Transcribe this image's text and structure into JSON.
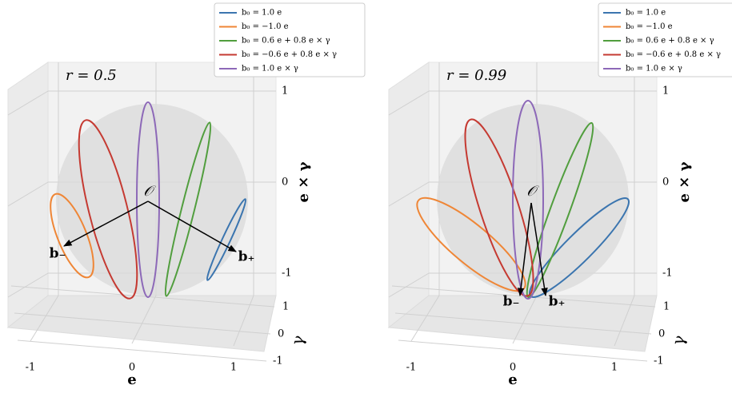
{
  "chart_data": [
    {
      "type": "line",
      "annotation": "r = 0.5",
      "origin_label": "𝒪",
      "vector_labels": [
        "b₋",
        "b₊"
      ],
      "xlabel": "e",
      "ylabel": "γ",
      "zlabel": "e × γ",
      "xlim": [
        -1.2,
        1.2
      ],
      "ylim": [
        -1.2,
        1.2
      ],
      "zlim": [
        -1.2,
        1.2
      ],
      "xticks": [
        -1,
        0,
        1
      ],
      "yticks": [
        -1,
        0,
        1
      ],
      "zticks": [
        -1,
        0,
        1
      ],
      "series": [
        {
          "name": "b₀ = 1.0 e",
          "color": "#3b75af"
        },
        {
          "name": "b₀ = −1.0 e",
          "color": "#ef8636"
        },
        {
          "name": "b₀ = 0.6 e + 0.8 e × γ",
          "color": "#519e3e"
        },
        {
          "name": "b₀ = −0.6 e + 0.8 e × γ",
          "color": "#c53a32"
        },
        {
          "name": "b₀ = 1.0 e × γ",
          "color": "#8d69b8"
        }
      ]
    },
    {
      "type": "line",
      "annotation": "r = 0.99",
      "origin_label": "𝒪",
      "vector_labels": [
        "b₋",
        "b₊"
      ],
      "xlabel": "e",
      "ylabel": "γ",
      "zlabel": "e × γ",
      "xlim": [
        -1.2,
        1.2
      ],
      "ylim": [
        -1.2,
        1.2
      ],
      "zlim": [
        -1.2,
        1.2
      ],
      "xticks": [
        -1,
        0,
        1
      ],
      "yticks": [
        -1,
        0,
        1
      ],
      "zticks": [
        -1,
        0,
        1
      ],
      "series": [
        {
          "name": "b₀ = 1.0 e",
          "color": "#3b75af"
        },
        {
          "name": "b₀ = −1.0 e",
          "color": "#ef8636"
        },
        {
          "name": "b₀ = 0.6 e + 0.8 e × γ",
          "color": "#519e3e"
        },
        {
          "name": "b₀ = −0.6 e + 0.8 e × γ",
          "color": "#c53a32"
        },
        {
          "name": "b₀ = 1.0 e × γ",
          "color": "#8d69b8"
        }
      ]
    }
  ]
}
